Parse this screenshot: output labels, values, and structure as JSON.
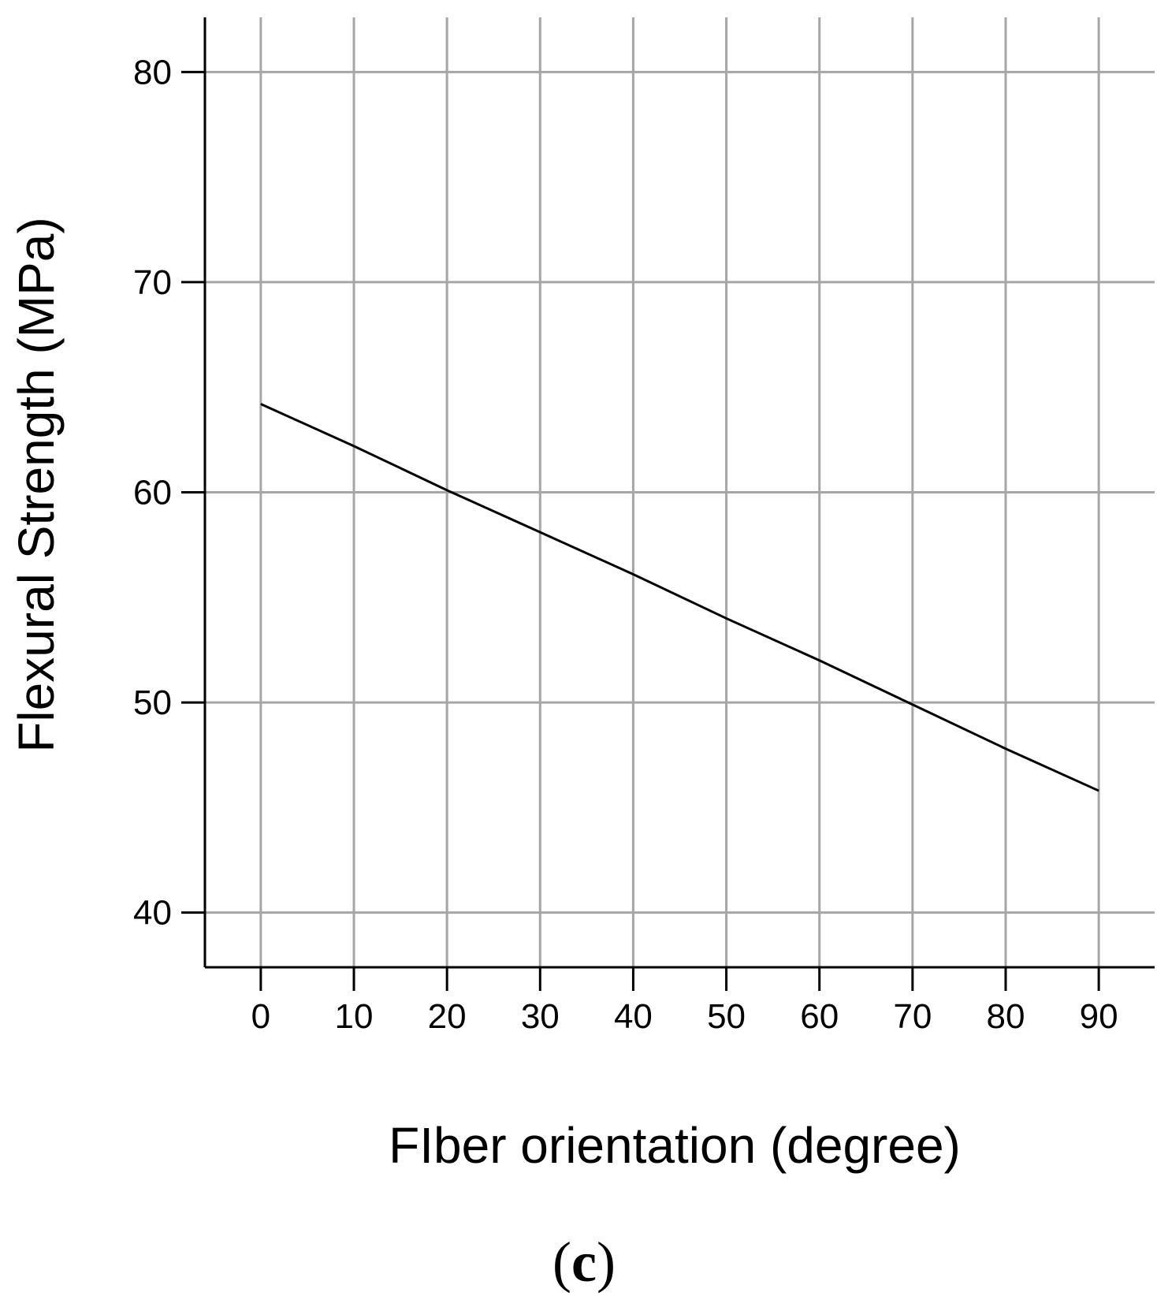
{
  "chart_data": {
    "type": "line",
    "title": "",
    "xlabel": "FIber orientation (degree)",
    "ylabel": "Flexural Strength (MPa)",
    "panel_label": "c",
    "xlim": [
      -6,
      96
    ],
    "ylim": [
      37.4,
      82.6
    ],
    "x_ticks": [
      0,
      10,
      20,
      30,
      40,
      50,
      60,
      70,
      80,
      90
    ],
    "y_ticks": [
      40,
      50,
      60,
      70,
      80
    ],
    "grid": true,
    "legend": "none",
    "colors": {
      "line": "#000000",
      "grid": "#a6a6a6",
      "axis": "#000000"
    },
    "series": [
      {
        "x": [
          0,
          10,
          20,
          30,
          40,
          50,
          60,
          70,
          80,
          90
        ],
        "y": [
          64.2,
          62.2,
          60.1,
          58.1,
          56.1,
          54.0,
          52.0,
          49.9,
          47.8,
          45.8
        ]
      }
    ]
  }
}
